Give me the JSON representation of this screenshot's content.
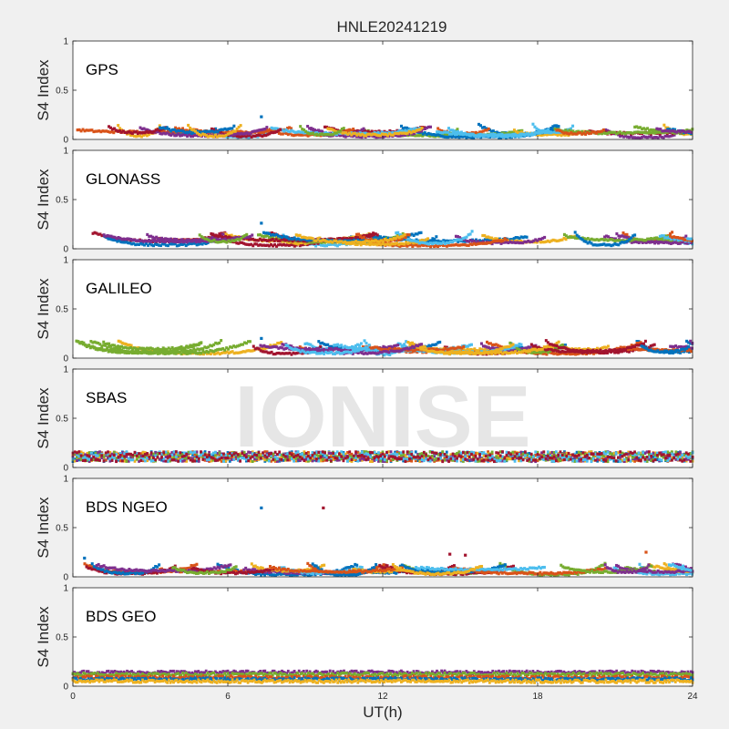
{
  "figure_title": "HNLE20241219",
  "watermark": "IONISE",
  "colors": {
    "series": [
      "#0072BD",
      "#D95319",
      "#EDB120",
      "#7E2F8E",
      "#77AC30",
      "#4DBEEE",
      "#A2142F"
    ],
    "background": "#F0F0F0",
    "axes": "#FFFFFF",
    "watermark": "#DCDCDC"
  },
  "chart_data": [
    {
      "type": "scatter",
      "constellation": "GPS",
      "ylabel": "S4 Index",
      "xlabel": "",
      "xlim": [
        0,
        24
      ],
      "ylim": [
        0,
        1
      ],
      "yticks": [
        "0",
        "0.5",
        "1"
      ],
      "xticks": [
        0,
        6,
        12,
        18,
        24
      ],
      "grid": false,
      "series_count": 7,
      "typical_s4_range": [
        0.02,
        0.15
      ],
      "peak_s4": 0.23,
      "outliers": []
    },
    {
      "type": "scatter",
      "constellation": "GLONASS",
      "ylabel": "S4 Index",
      "xlabel": "",
      "xlim": [
        0,
        24
      ],
      "ylim": [
        0,
        1
      ],
      "yticks": [
        "0",
        "0.5",
        "1"
      ],
      "xticks": [
        0,
        6,
        12,
        18,
        24
      ],
      "grid": false,
      "series_count": 7,
      "typical_s4_range": [
        0.03,
        0.17
      ],
      "peak_s4": 0.26,
      "outliers": []
    },
    {
      "type": "scatter",
      "constellation": "GALILEO",
      "ylabel": "S4 Index",
      "xlabel": "",
      "xlim": [
        0,
        24
      ],
      "ylim": [
        0,
        1
      ],
      "yticks": [
        "0",
        "0.5",
        "1"
      ],
      "xticks": [
        0,
        6,
        12,
        18,
        24
      ],
      "grid": false,
      "series_count": 7,
      "typical_s4_range": [
        0.04,
        0.18
      ],
      "peak_s4": 0.2,
      "outliers": []
    },
    {
      "type": "scatter",
      "constellation": "SBAS",
      "ylabel": "S4 Index",
      "xlabel": "",
      "xlim": [
        0,
        24
      ],
      "ylim": [
        0,
        1
      ],
      "yticks": [
        "0",
        "0.5",
        "1"
      ],
      "xticks": [
        0,
        6,
        12,
        18,
        24
      ],
      "grid": false,
      "series_count": 7,
      "typical_s4_range": [
        0.04,
        0.16
      ],
      "peak_s4": 0.22,
      "outliers": []
    },
    {
      "type": "scatter",
      "constellation": "BDS NGEO",
      "ylabel": "S4 Index",
      "xlabel": "",
      "xlim": [
        0,
        24
      ],
      "ylim": [
        0,
        1
      ],
      "yticks": [
        "0",
        "0.5",
        "1"
      ],
      "xticks": [
        0,
        6,
        12,
        18,
        24
      ],
      "grid": false,
      "series_count": 7,
      "typical_s4_range": [
        0.02,
        0.14
      ],
      "peak_s4": 0.7,
      "outliers": [
        {
          "x": 9.7,
          "y": 0.7,
          "series": 6
        },
        {
          "x": 0.45,
          "y": 0.19,
          "series": 0
        },
        {
          "x": 14.6,
          "y": 0.23,
          "series": 6
        },
        {
          "x": 15.2,
          "y": 0.22,
          "series": 6
        },
        {
          "x": 22.2,
          "y": 0.25,
          "series": 1
        }
      ]
    },
    {
      "type": "scatter",
      "constellation": "BDS GEO",
      "ylabel": "S4 Index",
      "xlabel": "UT(h)",
      "xlim": [
        0,
        24
      ],
      "ylim": [
        0,
        1
      ],
      "yticks": [
        "0",
        "0.5",
        "1"
      ],
      "xticks": [
        0,
        6,
        12,
        18,
        24
      ],
      "grid": false,
      "series_count": 7,
      "bands": [
        {
          "series": 3,
          "s4": 0.14
        },
        {
          "series": 4,
          "s4": 0.12
        },
        {
          "series": 1,
          "s4": 0.09
        },
        {
          "series": 0,
          "s4": 0.07
        },
        {
          "series": 2,
          "s4": 0.05
        }
      ],
      "peak_s4": 0.2,
      "outliers": []
    }
  ]
}
